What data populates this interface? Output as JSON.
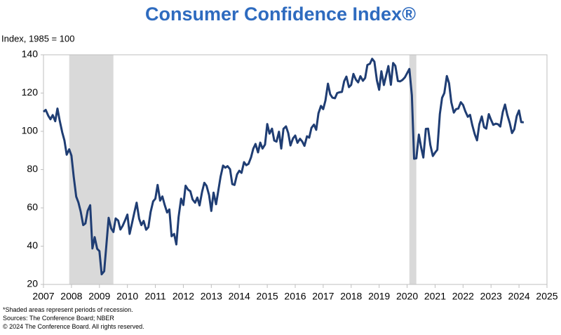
{
  "chart_data": {
    "type": "line",
    "title": "Consumer Confidence Index®",
    "y_label": "Index, 1985 = 100",
    "footnotes": [
      "*Shaded areas represent periods of recession.",
      "Sources: The Conference Board; NBER",
      "© 2024 The Conference Board. All rights reserved."
    ],
    "xlim": [
      2007,
      2025
    ],
    "xticks": [
      2007,
      2008,
      2009,
      2010,
      2011,
      2012,
      2013,
      2014,
      2015,
      2016,
      2017,
      2018,
      2019,
      2020,
      2021,
      2022,
      2023,
      2024,
      2025
    ],
    "ylim": [
      20,
      140
    ],
    "yticks": [
      20,
      40,
      60,
      80,
      100,
      120,
      140
    ],
    "grid": false,
    "recession_color": "#d9d9d9",
    "recessions": [
      [
        2007.92,
        2009.5
      ],
      [
        2020.08,
        2020.33
      ]
    ],
    "x": [
      2007.0,
      2007.08,
      2007.17,
      2007.25,
      2007.33,
      2007.42,
      2007.5,
      2007.58,
      2007.67,
      2007.75,
      2007.83,
      2007.92,
      2008.0,
      2008.08,
      2008.17,
      2008.25,
      2008.33,
      2008.42,
      2008.5,
      2008.58,
      2008.67,
      2008.75,
      2008.83,
      2008.92,
      2009.0,
      2009.08,
      2009.17,
      2009.25,
      2009.33,
      2009.42,
      2009.5,
      2009.58,
      2009.67,
      2009.75,
      2009.83,
      2009.92,
      2010.0,
      2010.08,
      2010.17,
      2010.25,
      2010.33,
      2010.42,
      2010.5,
      2010.58,
      2010.67,
      2010.75,
      2010.83,
      2010.92,
      2011.0,
      2011.08,
      2011.17,
      2011.25,
      2011.33,
      2011.42,
      2011.5,
      2011.58,
      2011.67,
      2011.75,
      2011.83,
      2011.92,
      2012.0,
      2012.08,
      2012.17,
      2012.25,
      2012.33,
      2012.42,
      2012.5,
      2012.58,
      2012.67,
      2012.75,
      2012.83,
      2012.92,
      2013.0,
      2013.08,
      2013.17,
      2013.25,
      2013.33,
      2013.42,
      2013.5,
      2013.58,
      2013.67,
      2013.75,
      2013.83,
      2013.92,
      2014.0,
      2014.08,
      2014.17,
      2014.25,
      2014.33,
      2014.42,
      2014.5,
      2014.58,
      2014.67,
      2014.75,
      2014.83,
      2014.92,
      2015.0,
      2015.08,
      2015.17,
      2015.25,
      2015.33,
      2015.42,
      2015.5,
      2015.58,
      2015.67,
      2015.75,
      2015.83,
      2015.92,
      2016.0,
      2016.08,
      2016.17,
      2016.25,
      2016.33,
      2016.42,
      2016.5,
      2016.58,
      2016.67,
      2016.75,
      2016.83,
      2016.92,
      2017.0,
      2017.08,
      2017.17,
      2017.25,
      2017.33,
      2017.42,
      2017.5,
      2017.58,
      2017.67,
      2017.75,
      2017.83,
      2017.92,
      2018.0,
      2018.08,
      2018.17,
      2018.25,
      2018.33,
      2018.42,
      2018.5,
      2018.58,
      2018.67,
      2018.75,
      2018.83,
      2018.92,
      2019.0,
      2019.08,
      2019.17,
      2019.25,
      2019.33,
      2019.42,
      2019.5,
      2019.58,
      2019.67,
      2019.75,
      2019.83,
      2019.92,
      2020.0,
      2020.08,
      2020.17,
      2020.25,
      2020.33,
      2020.42,
      2020.5,
      2020.58,
      2020.67,
      2020.75,
      2020.83,
      2020.92,
      2021.0,
      2021.08,
      2021.17,
      2021.25,
      2021.33,
      2021.42,
      2021.5,
      2021.58,
      2021.67,
      2021.75,
      2021.83,
      2021.92,
      2022.0,
      2022.08,
      2022.17,
      2022.25,
      2022.33,
      2022.42,
      2022.5,
      2022.58,
      2022.67,
      2022.75,
      2022.83,
      2022.92,
      2023.0,
      2023.08,
      2023.17,
      2023.25,
      2023.33,
      2023.42,
      2023.5,
      2023.58,
      2023.67,
      2023.75,
      2023.83,
      2023.92,
      2024.0,
      2024.08,
      2024.17
    ],
    "series": [
      {
        "color": "#1f3d73",
        "values": [
          110.2,
          111.2,
          108.2,
          106.3,
          108.5,
          105.3,
          111.9,
          105.6,
          99.5,
          95.2,
          87.8,
          90.6,
          87.3,
          76.4,
          65.9,
          62.8,
          58.1,
          51.0,
          51.9,
          58.5,
          61.4,
          38.8,
          44.7,
          38.6,
          37.4,
          25.3,
          26.9,
          40.8,
          54.8,
          49.3,
          47.4,
          54.5,
          53.4,
          48.7,
          50.6,
          53.6,
          56.5,
          46.4,
          52.3,
          57.7,
          62.7,
          54.3,
          51.0,
          53.2,
          48.6,
          49.9,
          57.8,
          63.4,
          64.8,
          72.0,
          63.8,
          66.0,
          61.7,
          57.6,
          59.2,
          45.2,
          46.4,
          40.9,
          55.2,
          64.8,
          61.5,
          71.6,
          69.5,
          68.7,
          64.4,
          62.7,
          65.4,
          61.3,
          68.4,
          73.1,
          71.5,
          66.7,
          58.4,
          68.0,
          61.9,
          69.0,
          76.2,
          82.1,
          81.0,
          81.8,
          80.2,
          72.4,
          72.0,
          77.5,
          79.4,
          78.3,
          83.9,
          82.3,
          83.0,
          86.4,
          90.9,
          93.4,
          89.0,
          94.1,
          91.0,
          93.1,
          103.8,
          98.8,
          101.4,
          95.2,
          94.6,
          99.8,
          91.0,
          101.3,
          102.6,
          99.1,
          92.6,
          96.3,
          97.8,
          94.0,
          96.1,
          94.7,
          92.4,
          97.4,
          96.7,
          101.8,
          103.5,
          100.8,
          109.4,
          113.3,
          111.6,
          116.1,
          124.9,
          119.4,
          117.6,
          117.3,
          120.0,
          120.4,
          120.6,
          126.2,
          128.6,
          123.1,
          124.3,
          130.0,
          127.0,
          125.6,
          128.8,
          126.4,
          127.9,
          134.7,
          135.3,
          137.9,
          136.4,
          126.6,
          121.7,
          131.4,
          124.2,
          129.2,
          134.1,
          124.3,
          135.7,
          134.2,
          126.3,
          126.1,
          126.8,
          128.2,
          130.4,
          132.6,
          118.8,
          85.7,
          85.9,
          98.3,
          91.7,
          86.3,
          101.3,
          101.4,
          92.9,
          87.1,
          88.9,
          90.4,
          109.0,
          117.5,
          120.0,
          128.9,
          125.1,
          115.2,
          109.8,
          111.6,
          111.9,
          115.2,
          113.8,
          110.5,
          107.6,
          108.6,
          103.2,
          98.4,
          95.3,
          103.6,
          107.8,
          102.2,
          101.4,
          109.0,
          106.0,
          103.4,
          104.0,
          103.7,
          102.5,
          110.1,
          114.0,
          108.7,
          104.3,
          99.1,
          101.0,
          108.0,
          110.9,
          104.8,
          104.7
        ]
      }
    ]
  }
}
